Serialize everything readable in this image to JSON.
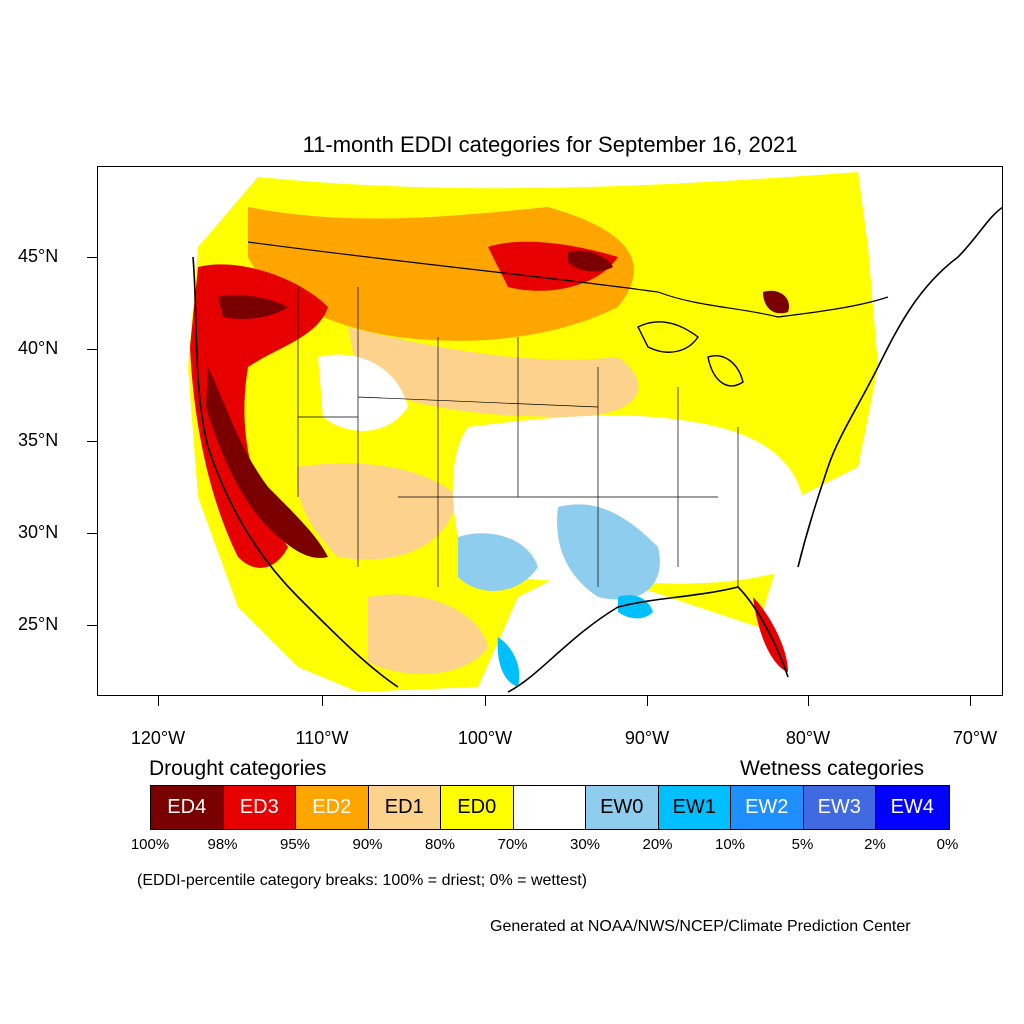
{
  "title": "11-month EDDI categories for September 16, 2021",
  "latitude_labels": [
    "45°N",
    "40°N",
    "35°N",
    "30°N",
    "25°N"
  ],
  "longitude_labels": [
    "120°W",
    "110°W",
    "100°W",
    "90°W",
    "80°W",
    "70°W"
  ],
  "legend": {
    "drought_title": "Drought categories",
    "wetness_title": "Wetness categories",
    "categories": [
      {
        "label": "ED4",
        "color": "#7a0000",
        "text_color": "#ffffff"
      },
      {
        "label": "ED3",
        "color": "#e60000",
        "text_color": "#ffffff"
      },
      {
        "label": "ED2",
        "color": "#ffa500",
        "text_color": "#ffffff"
      },
      {
        "label": "ED1",
        "color": "#fcd28d",
        "text_color": "#000000"
      },
      {
        "label": "ED0",
        "color": "#ffff00",
        "text_color": "#000000"
      },
      {
        "label": "",
        "color": "#ffffff",
        "text_color": "#000000"
      },
      {
        "label": "EW0",
        "color": "#8fcdee",
        "text_color": "#000000"
      },
      {
        "label": "EW1",
        "color": "#00bfff",
        "text_color": "#000000"
      },
      {
        "label": "EW2",
        "color": "#1e8fff",
        "text_color": "#ffffff"
      },
      {
        "label": "EW3",
        "color": "#4169e1",
        "text_color": "#ffffff"
      },
      {
        "label": "EW4",
        "color": "#0000ff",
        "text_color": "#ffffff"
      }
    ],
    "percentiles": [
      "100%",
      "98%",
      "95%",
      "90%",
      "80%",
      "70%",
      "30%",
      "20%",
      "10%",
      "5%",
      "2%",
      "0%"
    ]
  },
  "note": "(EDDI-percentile category breaks: 100% = driest; 0% = wettest)",
  "credit": "Generated at NOAA/NWS/NCEP/Climate Prediction Center"
}
